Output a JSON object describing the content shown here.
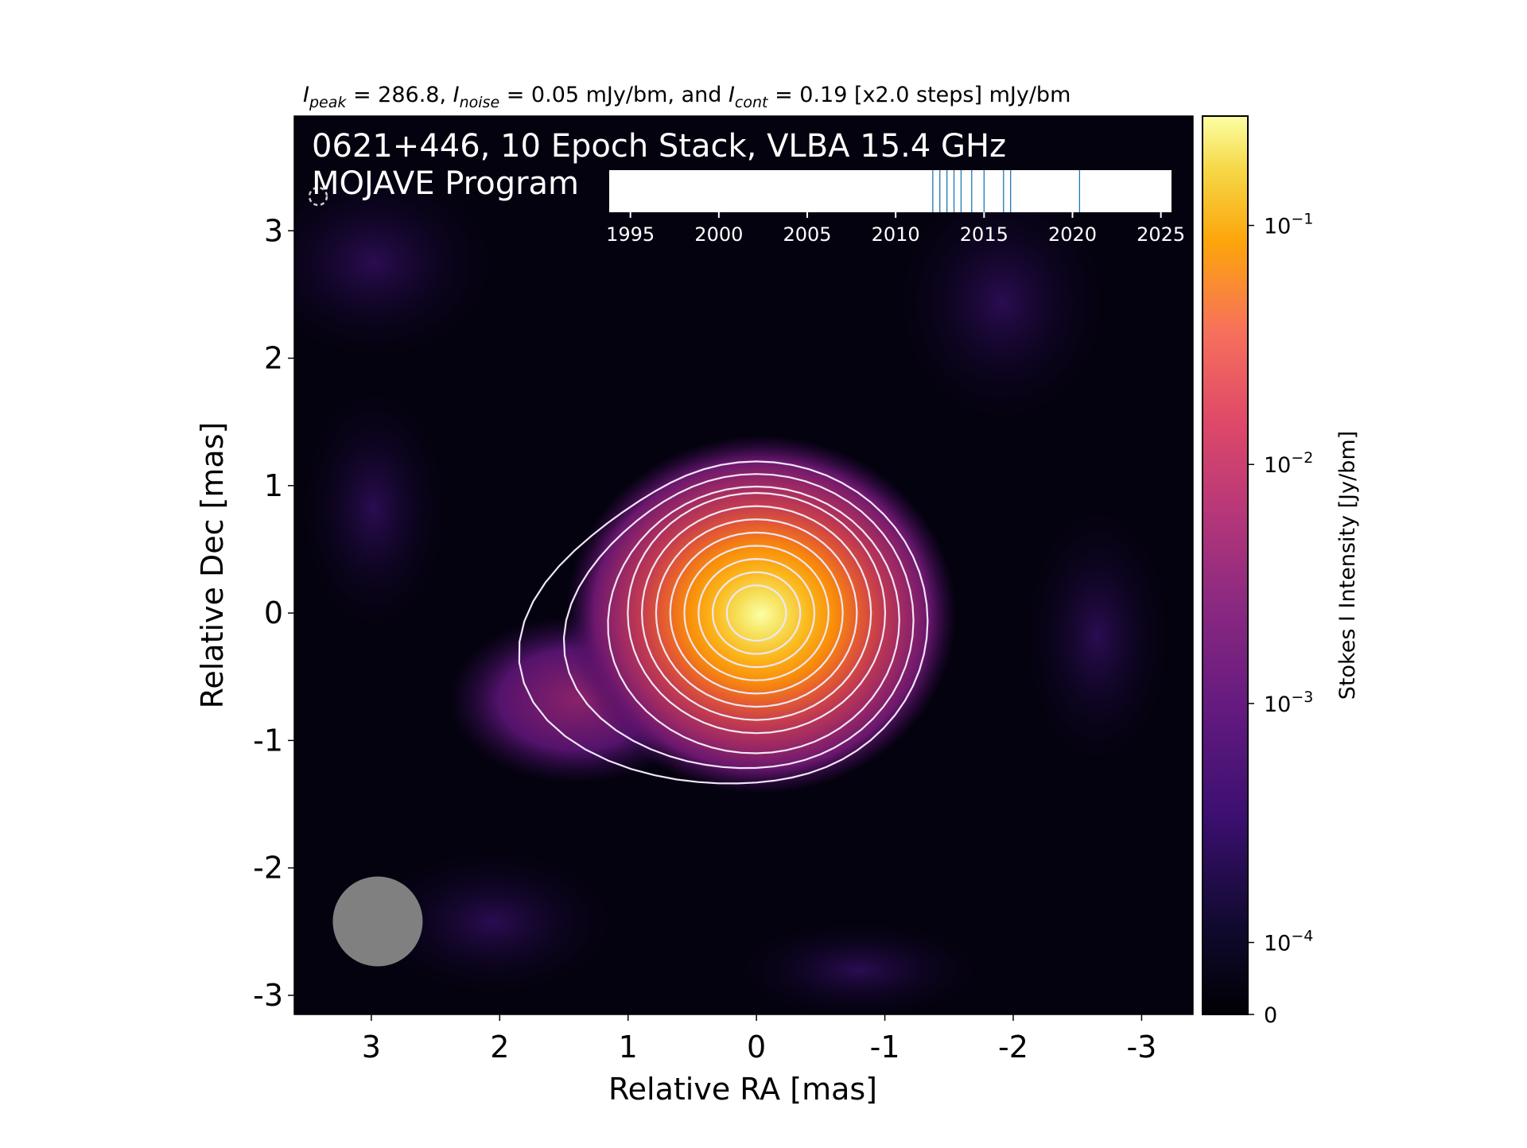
{
  "chart_data": {
    "type": "heatmap",
    "header": {
      "i_peak_sym": "I",
      "i_peak_sub": "peak",
      "i_peak_text": " = 286.8, ",
      "i_noise_sym": "I",
      "i_noise_sub": "noise",
      "i_noise_text": " = 0.05 mJy/bm, and ",
      "i_cont_sym": "I",
      "i_cont_sub": "cont",
      "i_cont_text": " = 0.19 [x2.0 steps] mJy/bm"
    },
    "title_line1": "0621+446, 10 Epoch Stack, VLBA 15.4 GHz",
    "title_line2": "MOJAVE Program",
    "xlabel": "Relative RA [mas]",
    "ylabel": "Relative Dec [mas]",
    "xlim": [
      3.6,
      -3.4
    ],
    "ylim": [
      -3.15,
      3.9
    ],
    "x_ticks": [
      "3",
      "2",
      "1",
      "0",
      "-1",
      "-2",
      "-3"
    ],
    "x_tick_values": [
      3,
      2,
      1,
      0,
      -1,
      -2,
      -3
    ],
    "y_ticks": [
      "3",
      "2",
      "1",
      "0",
      "-1",
      "-2",
      "-3"
    ],
    "y_tick_values": [
      3,
      2,
      1,
      0,
      -1,
      -2,
      -3
    ],
    "colorbar": {
      "label": "Stokes I Intensity [Jy/bm]",
      "tick_base": [
        "10",
        "10",
        "10",
        "10",
        "0"
      ],
      "tick_exp": [
        "−1",
        "−2",
        "−3",
        "−4",
        ""
      ],
      "tick_values": [
        0.1,
        0.01,
        0.001,
        0.0001,
        0
      ],
      "colormap": "inferno",
      "scale": "log"
    },
    "peak_jy_per_beam": 0.2868,
    "noise_mjy_per_beam": 0.05,
    "lowest_contour_mjy_per_beam": 0.19,
    "contour_step_factor": 2.0,
    "contour_count": 11,
    "contour_color": "#f0e6f5",
    "source_center": [
      0,
      0
    ],
    "beam": {
      "major_mas": 0.7,
      "minor_mas": 0.7,
      "pa_deg": 0,
      "center": [
        2.95,
        -2.42
      ],
      "color": "#808080"
    },
    "timeline": {
      "ticks": [
        "1995",
        "2000",
        "2005",
        "2010",
        "2015",
        "2020",
        "2025"
      ],
      "tick_values": [
        1995,
        2000,
        2005,
        2010,
        2015,
        2020,
        2025
      ],
      "range": [
        1993.8,
        2025.6
      ],
      "epochs": [
        2012.1,
        2012.5,
        2012.9,
        2013.3,
        2013.7,
        2014.3,
        2015.0,
        2016.1,
        2016.5,
        2020.4
      ],
      "epoch_color": "#1f77b4"
    }
  }
}
